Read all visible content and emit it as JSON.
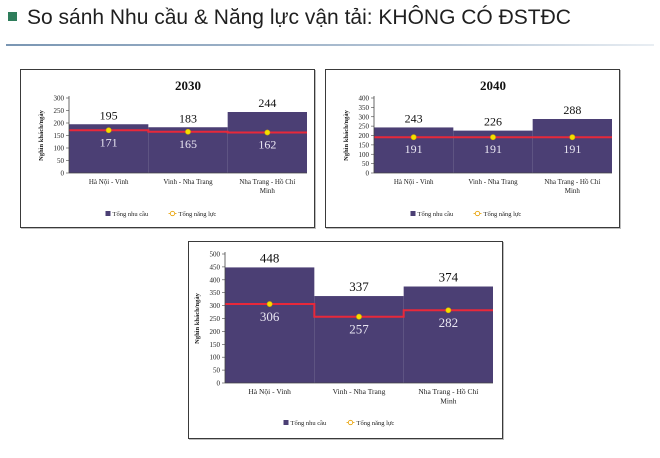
{
  "page": {
    "title": "So sánh Nhu cầu & Năng lực vận tải: KHÔNG CÓ ĐSTĐC"
  },
  "chart_data": [
    {
      "type": "bar",
      "title": "2030",
      "ylabel": "Nghìn khách/ngày",
      "ylim": [
        0,
        300
      ],
      "yticks": [
        0,
        50,
        100,
        150,
        200,
        250,
        300
      ],
      "categories": [
        "Hà Nội - Vinh",
        "Vinh - Nha Trang",
        "Nha Trang - Hồ Chí Minh"
      ],
      "series": [
        {
          "name": "Tổng nhu cầu",
          "kind": "bar",
          "color": "#4b3f74",
          "values": [
            195,
            183,
            244
          ]
        },
        {
          "name": "Tổng năng lực",
          "kind": "step-line",
          "color": "#e8283a",
          "marker_color": "#f2e000",
          "values": [
            171,
            165,
            162
          ]
        }
      ],
      "legend": "bottom",
      "grid": false
    },
    {
      "type": "bar",
      "title": "2040",
      "ylabel": "Nghìn khách/ngày",
      "ylim": [
        0,
        400
      ],
      "yticks": [
        0,
        50,
        100,
        150,
        200,
        250,
        300,
        350,
        400
      ],
      "categories": [
        "Hà Nội - Vinh",
        "Vinh - Nha Trang",
        "Nha Trang - Hồ Chí Minh"
      ],
      "series": [
        {
          "name": "Tổng nhu cầu",
          "kind": "bar",
          "color": "#4b3f74",
          "values": [
            243,
            226,
            288
          ]
        },
        {
          "name": "Tổng năng lực",
          "kind": "step-line",
          "color": "#e8283a",
          "marker_color": "#f2e000",
          "values": [
            191,
            191,
            191
          ]
        }
      ],
      "legend": "bottom",
      "grid": false
    },
    {
      "type": "bar",
      "title": "",
      "ylabel": "Nghìn khách/ngày",
      "ylim": [
        0,
        500
      ],
      "yticks": [
        0,
        50,
        100,
        150,
        200,
        250,
        300,
        350,
        400,
        450,
        500
      ],
      "categories": [
        "Hà Nội - Vinh",
        "Vinh - Nha Trang",
        "Nha Trang - Hồ Chí Minh"
      ],
      "series": [
        {
          "name": "Tổng nhu cầu",
          "kind": "bar",
          "color": "#4b3f74",
          "values": [
            448,
            337,
            374
          ]
        },
        {
          "name": "Tổng năng lực",
          "kind": "step-line",
          "color": "#e8283a",
          "marker_color": "#f2e000",
          "values": [
            306,
            257,
            282
          ]
        }
      ],
      "legend": "bottom",
      "grid": false
    }
  ]
}
